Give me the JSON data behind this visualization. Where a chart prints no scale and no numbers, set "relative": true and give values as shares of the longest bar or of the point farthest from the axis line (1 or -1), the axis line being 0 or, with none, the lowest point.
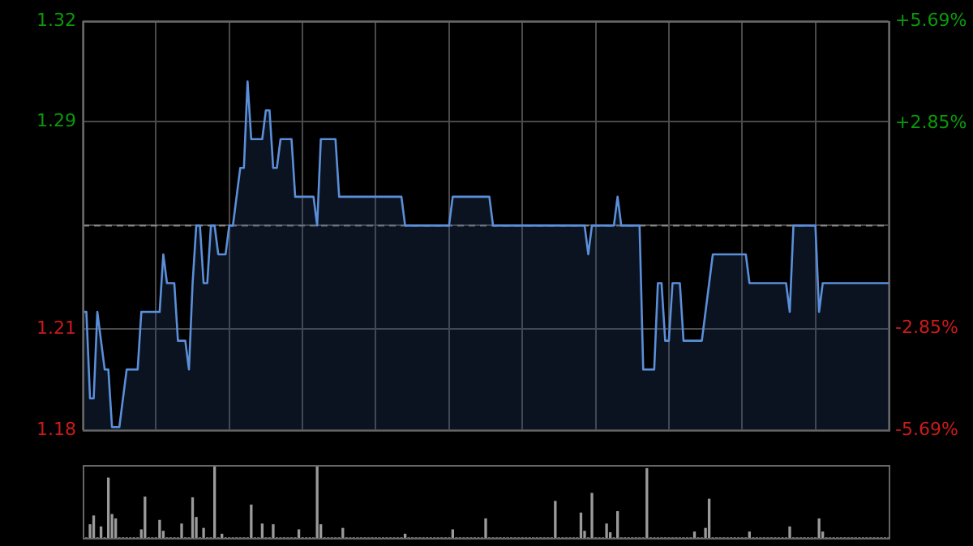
{
  "chart_data": [
    {
      "type": "area",
      "grid": true,
      "legend": false,
      "tick_labels": "y",
      "line_style": "solid",
      "marker": "none",
      "categories": [
        null,
        null,
        null,
        null,
        null,
        null,
        null,
        null,
        null,
        null,
        null,
        null,
        null,
        null,
        null,
        null,
        null,
        null,
        null,
        null,
        null,
        null,
        null,
        null,
        null,
        null,
        null,
        null,
        null,
        null,
        null,
        null,
        null,
        null,
        null,
        null,
        null,
        null,
        null,
        null,
        null,
        null,
        null,
        null,
        null,
        null,
        null,
        null,
        null,
        null,
        null,
        null,
        null,
        null,
        null,
        null,
        null,
        null,
        null,
        null,
        null,
        null,
        null,
        null,
        null,
        null,
        null,
        null,
        null,
        null,
        null,
        null,
        null,
        null,
        null,
        null,
        null,
        null,
        null,
        null,
        null,
        null,
        null,
        null,
        null,
        null,
        null,
        null,
        null,
        null,
        null,
        null,
        null,
        null,
        null,
        null,
        null,
        null,
        null,
        null,
        null,
        null,
        null,
        null,
        null,
        null,
        null,
        null,
        null,
        null,
        null,
        null,
        null,
        null,
        null,
        null,
        null,
        null,
        null,
        null,
        null,
        null,
        null,
        null,
        null,
        null,
        null,
        null,
        null,
        null,
        null,
        null,
        null,
        null,
        null,
        null,
        null,
        null,
        null,
        null,
        null,
        null,
        null,
        null,
        null,
        null,
        null,
        null,
        null,
        null,
        null,
        null,
        null,
        null,
        null,
        null,
        null,
        null,
        null,
        null,
        null,
        null,
        null,
        null,
        null,
        null,
        null,
        null,
        null,
        null,
        null,
        null,
        null,
        null,
        null,
        null,
        null,
        null,
        null,
        null,
        null,
        null,
        null,
        null,
        null,
        null,
        null,
        null,
        null,
        null,
        null,
        null,
        null,
        null,
        null,
        null,
        null,
        null,
        null,
        null,
        null,
        null,
        null,
        null,
        null,
        null,
        null,
        null,
        null,
        null,
        null,
        null,
        null,
        null,
        null,
        null,
        null,
        null,
        null,
        null,
        null
      ],
      "ylim": [
        1.179,
        1.321
      ],
      "yticks": [
        {
          "value": 1.179,
          "label": "1.18"
        },
        {
          "value": 1.214,
          "label": "1.21"
        },
        {
          "value": 1.25,
          "label": null
        },
        {
          "value": 1.286,
          "label": "1.29"
        },
        {
          "value": 1.321,
          "label": "1.32"
        }
      ],
      "y2lim": [
        -5.69,
        5.69
      ],
      "y2ticks": [
        {
          "value": -5.69,
          "label": "-5.69%"
        },
        {
          "value": -2.85,
          "label": "-2.85%"
        },
        {
          "value": 2.85,
          "label": "+2.85%"
        },
        {
          "value": 5.69,
          "label": "+5.69%"
        }
      ],
      "ref_lines": [
        {
          "axis": "y",
          "value": 1.25,
          "label": null,
          "color": "#888888",
          "line_style": "dashed"
        }
      ],
      "series": [
        {
          "color": "#5b8fd9",
          "values": [
            1.22,
            1.22,
            1.19,
            1.19,
            1.22,
            1.21,
            1.2,
            1.2,
            1.18,
            1.18,
            1.18,
            1.19,
            1.2,
            1.2,
            1.2,
            1.2,
            1.22,
            1.22,
            1.22,
            1.22,
            1.22,
            1.22,
            1.24,
            1.23,
            1.23,
            1.23,
            1.21,
            1.21,
            1.21,
            1.2,
            1.23,
            1.25,
            1.25,
            1.23,
            1.23,
            1.25,
            1.25,
            1.24,
            1.24,
            1.24,
            1.25,
            1.25,
            1.26,
            1.27,
            1.27,
            1.3,
            1.28,
            1.28,
            1.28,
            1.28,
            1.29,
            1.29,
            1.27,
            1.27,
            1.28,
            1.28,
            1.28,
            1.28,
            1.26,
            1.26,
            1.26,
            1.26,
            1.26,
            1.26,
            1.25,
            1.28,
            1.28,
            1.28,
            1.28,
            1.28,
            1.26,
            1.26,
            1.26,
            1.26,
            1.26,
            1.26,
            1.26,
            1.26,
            1.26,
            1.26,
            1.26,
            1.26,
            1.26,
            1.26,
            1.26,
            1.26,
            1.26,
            1.26,
            1.25,
            1.25,
            1.25,
            1.25,
            1.25,
            1.25,
            1.25,
            1.25,
            1.25,
            1.25,
            1.25,
            1.25,
            1.25,
            1.26,
            1.26,
            1.26,
            1.26,
            1.26,
            1.26,
            1.26,
            1.26,
            1.26,
            1.26,
            1.26,
            1.25,
            1.25,
            1.25,
            1.25,
            1.25,
            1.25,
            1.25,
            1.25,
            1.25,
            1.25,
            1.25,
            1.25,
            1.25,
            1.25,
            1.25,
            1.25,
            1.25,
            1.25,
            1.25,
            1.25,
            1.25,
            1.25,
            1.25,
            1.25,
            1.25,
            1.25,
            1.24,
            1.25,
            1.25,
            1.25,
            1.25,
            1.25,
            1.25,
            1.25,
            1.26,
            1.25,
            1.25,
            1.25,
            1.25,
            1.25,
            1.25,
            1.2,
            1.2,
            1.2,
            1.2,
            1.23,
            1.23,
            1.21,
            1.21,
            1.23,
            1.23,
            1.23,
            1.21,
            1.21,
            1.21,
            1.21,
            1.21,
            1.21,
            1.22,
            1.23,
            1.24,
            1.24,
            1.24,
            1.24,
            1.24,
            1.24,
            1.24,
            1.24,
            1.24,
            1.24,
            1.23,
            1.23,
            1.23,
            1.23,
            1.23,
            1.23,
            1.23,
            1.23,
            1.23,
            1.23,
            1.23,
            1.22,
            1.25,
            1.25,
            1.25,
            1.25,
            1.25,
            1.25,
            1.25,
            1.22,
            1.23,
            1.23,
            1.23,
            1.23,
            1.23,
            1.23,
            1.23,
            1.23,
            1.23,
            1.23,
            1.23,
            1.23,
            1.23,
            1.23,
            1.23,
            1.23,
            1.23,
            1.23,
            1.23
          ]
        }
      ]
    },
    {
      "type": "bar",
      "relative": true,
      "grid": false,
      "legend": false,
      "tick_labels": false,
      "categories": [
        null,
        null,
        null,
        null,
        null,
        null,
        null,
        null,
        null,
        null,
        null,
        null,
        null,
        null,
        null,
        null,
        null,
        null,
        null,
        null,
        null,
        null,
        null,
        null,
        null,
        null,
        null,
        null,
        null,
        null,
        null,
        null,
        null,
        null,
        null,
        null,
        null,
        null,
        null,
        null,
        null,
        null,
        null,
        null,
        null,
        null,
        null,
        null,
        null,
        null,
        null,
        null,
        null,
        null,
        null,
        null,
        null,
        null,
        null,
        null,
        null,
        null,
        null,
        null,
        null,
        null,
        null,
        null,
        null,
        null,
        null,
        null,
        null,
        null,
        null,
        null,
        null,
        null,
        null,
        null,
        null,
        null,
        null,
        null,
        null,
        null,
        null,
        null,
        null,
        null,
        null,
        null,
        null,
        null,
        null,
        null,
        null,
        null,
        null,
        null,
        null,
        null,
        null,
        null,
        null,
        null,
        null,
        null,
        null,
        null,
        null,
        null,
        null,
        null,
        null,
        null,
        null,
        null,
        null,
        null,
        null,
        null,
        null,
        null,
        null,
        null,
        null,
        null,
        null,
        null,
        null,
        null,
        null,
        null,
        null,
        null,
        null,
        null,
        null,
        null,
        null,
        null,
        null,
        null,
        null,
        null,
        null,
        null,
        null,
        null,
        null,
        null,
        null,
        null,
        null,
        null,
        null,
        null,
        null,
        null,
        null,
        null,
        null,
        null,
        null,
        null,
        null,
        null,
        null,
        null,
        null,
        null,
        null,
        null,
        null,
        null,
        null,
        null,
        null,
        null,
        null,
        null,
        null,
        null,
        null,
        null,
        null,
        null,
        null,
        null,
        null,
        null,
        null,
        null,
        null,
        null,
        null,
        null,
        null,
        null,
        null,
        null,
        null,
        null,
        null,
        null,
        null,
        null,
        null,
        null,
        null,
        null,
        null,
        null,
        null,
        null,
        null,
        null,
        null,
        null,
        null
      ],
      "series": [
        {
          "color": "#9a9a9a",
          "values": [
            0,
            0,
            0.18,
            0.3,
            0,
            0.15,
            0,
            0.82,
            0.32,
            0.26,
            0,
            0,
            0,
            0,
            0,
            0,
            0.11,
            0.56,
            0,
            0,
            0,
            0.24,
            0.09,
            0,
            0,
            0,
            0,
            0.19,
            0,
            0,
            0.55,
            0.28,
            0,
            0.13,
            0,
            0,
            1,
            0,
            0.05,
            0,
            0,
            0,
            0,
            0,
            0,
            0,
            0.45,
            0,
            0,
            0.19,
            0,
            0,
            0.18,
            0,
            0,
            0,
            0,
            0,
            0,
            0.11,
            0,
            0,
            0,
            0,
            1,
            0.18,
            0,
            0,
            0,
            0,
            0,
            0.13,
            0,
            0,
            0,
            0,
            0,
            0,
            0,
            0,
            0,
            0,
            0,
            0,
            0,
            0,
            0,
            0,
            0.05,
            0,
            0,
            0,
            0,
            0,
            0,
            0,
            0,
            0,
            0,
            0,
            0,
            0.11,
            0,
            0,
            0,
            0,
            0,
            0,
            0,
            0,
            0.26,
            0,
            0,
            0,
            0,
            0,
            0,
            0,
            0,
            0,
            0,
            0,
            0,
            0,
            0,
            0,
            0,
            0,
            0,
            0.5,
            0,
            0,
            0,
            0,
            0,
            0,
            0.34,
            0.09,
            0,
            0.61,
            0,
            0,
            0,
            0.19,
            0.07,
            0,
            0.36,
            0,
            0,
            0,
            0,
            0,
            0,
            0,
            0.95,
            0,
            0,
            0,
            0,
            0,
            0,
            0,
            0,
            0,
            0,
            0,
            0,
            0.08,
            0,
            0,
            0.13,
            0.53,
            0,
            0,
            0,
            0,
            0,
            0,
            0,
            0,
            0,
            0,
            0.08,
            0,
            0,
            0,
            0,
            0,
            0,
            0,
            0,
            0,
            0,
            0.15,
            0,
            0,
            0,
            0,
            0,
            0,
            0,
            0.26,
            0.08,
            0,
            0,
            0,
            0,
            0,
            0,
            0,
            0,
            0,
            0,
            0,
            0,
            0,
            0,
            0,
            0,
            0,
            0
          ]
        }
      ]
    }
  ]
}
